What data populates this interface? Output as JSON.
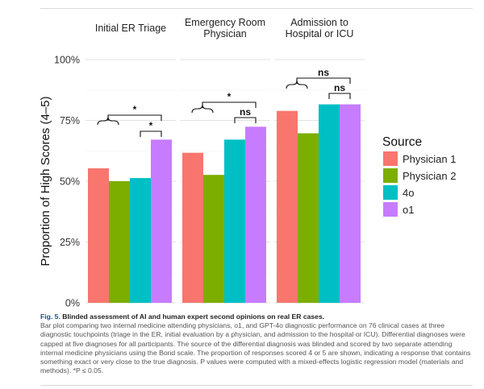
{
  "chart_data": {
    "type": "bar",
    "facets": [
      "Initial ER Triage",
      "Emergency Room Physician",
      "Admission to Hospital or ICU"
    ],
    "facet_title_lines": [
      [
        "Initial ER Triage"
      ],
      [
        "Emergency Room",
        "Physician"
      ],
      [
        "Admission to",
        "Hospital or ICU"
      ]
    ],
    "series": [
      {
        "name": "Physician 1",
        "color": "#F8766D",
        "values": [
          0.553,
          0.617,
          0.789
        ]
      },
      {
        "name": "Physician 2",
        "color": "#7CAE00",
        "values": [
          0.5,
          0.526,
          0.697
        ]
      },
      {
        "name": "4o",
        "color": "#00BFC4",
        "values": [
          0.513,
          0.671,
          0.816
        ]
      },
      {
        "name": "o1",
        "color": "#C77CFF",
        "values": [
          0.671,
          0.724,
          0.816
        ]
      }
    ],
    "ylabel": "Proportion of High Scores (4–5)",
    "ylim": [
      0,
      1
    ],
    "yticks": [
      0,
      0.25,
      0.5,
      0.75,
      1.0
    ],
    "ytick_labels": [
      "0%",
      "25%",
      "50%",
      "75%",
      "100%"
    ],
    "legend": {
      "title": "Source",
      "placement": "right"
    },
    "grid": true,
    "annotations": [
      {
        "facet": 0,
        "from": "Physician 1",
        "to": "o1",
        "label": "*"
      },
      {
        "facet": 0,
        "from": "4o",
        "to": "o1",
        "label": "*"
      },
      {
        "facet": 1,
        "from": "Physician 1",
        "to": "o1",
        "label": "*"
      },
      {
        "facet": 1,
        "from": "4o",
        "to": "o1",
        "label": "ns"
      },
      {
        "facet": 2,
        "from": "Physician 1",
        "to": "o1",
        "label": "ns"
      },
      {
        "facet": 2,
        "from": "4o",
        "to": "o1",
        "label": "ns"
      }
    ]
  },
  "caption": {
    "figure_label": "Fig. 5.",
    "figure_title": "Blinded assessment of AI and human expert second opinions on real ER cases.",
    "body": "Bar plot comparing two internal medicine attending physicians, o1, and GPT-4o diagnostic performance on 76 clinical cases at three diagnostic touchpoints (triage in the ER, initial evaluation by a physician, and admission to the hospital or ICU). Differential diagnoses were capped at five diagnoses for all participants. The source of the differential diagnosis was blinded and scored by two separate attending internal medicine physicians using the Bond scale. The proportion of responses scored 4 or 5 are shown, indicating a response that contains something exact or very close to the true diagnosis. P values were computed with a mixed-effects logistic regression model (materials and methods). *P ≤ 0.05."
  }
}
